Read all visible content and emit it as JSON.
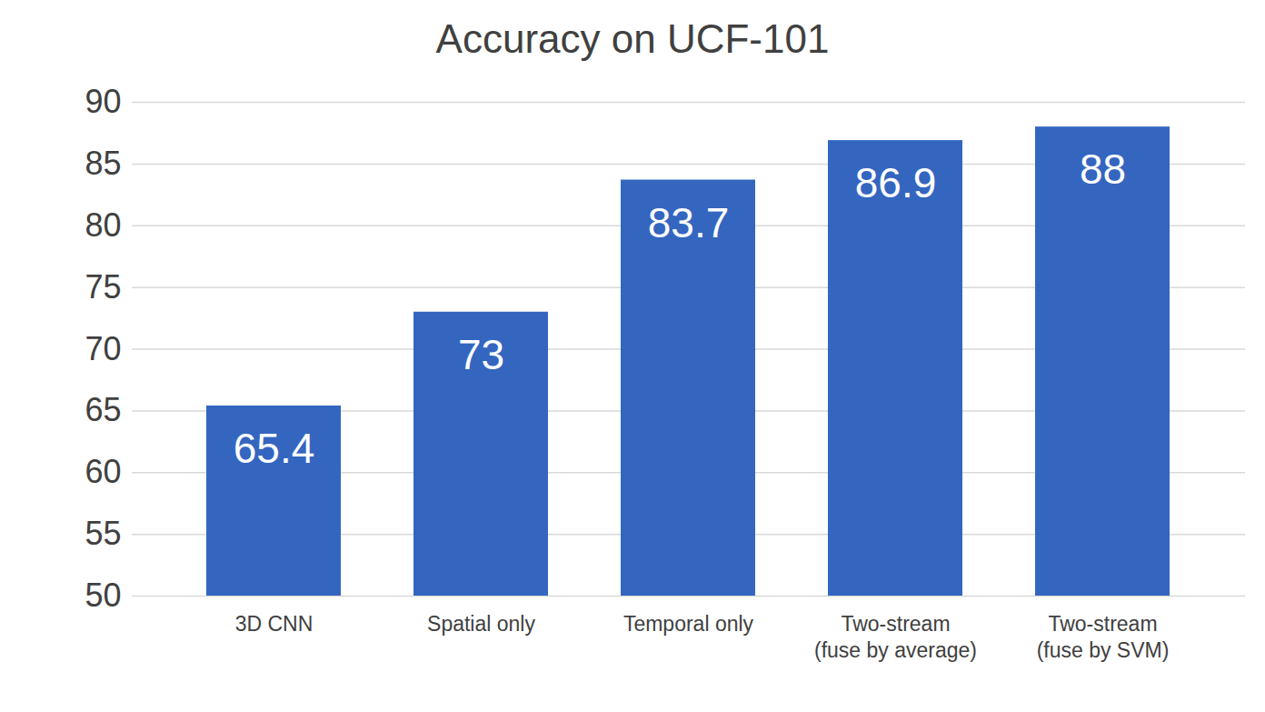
{
  "chart_data": {
    "type": "bar",
    "title": "Accuracy on UCF-101",
    "categories": [
      "3D CNN",
      "Spatial only",
      "Temporal only",
      "Two-stream\n(fuse by average)",
      "Two-stream\n(fuse by SVM)"
    ],
    "values": [
      65.4,
      73,
      83.7,
      86.9,
      88
    ],
    "color": "#3466c0",
    "ylim": [
      50,
      90
    ],
    "yticks": [
      50,
      55,
      60,
      65,
      70,
      75,
      80,
      85,
      90
    ],
    "grid": true,
    "data_labels": true
  }
}
